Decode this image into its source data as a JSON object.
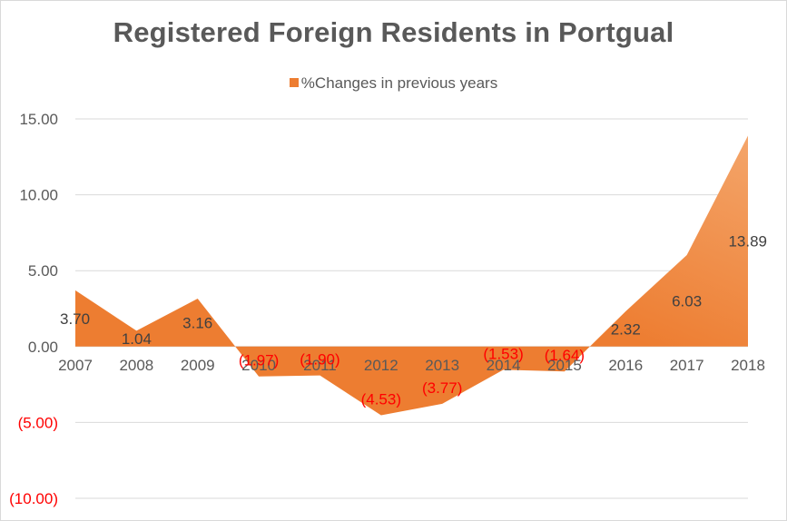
{
  "chart_data": {
    "type": "area",
    "title": "Registered Foreign Residents in Portgual",
    "categories": [
      "2007",
      "2008",
      "2009",
      "2010",
      "2011",
      "2012",
      "2013",
      "2014",
      "2015",
      "2016",
      "2017",
      "2018"
    ],
    "series": [
      {
        "name": "%Changes in previous years",
        "values": [
          3.7,
          1.04,
          3.16,
          -1.97,
          -1.9,
          -4.53,
          -3.77,
          -1.53,
          -1.64,
          2.32,
          6.03,
          13.89
        ],
        "labels": [
          "3.70",
          "1.04",
          "3.16",
          "(1.97)",
          "(1.90)",
          "(4.53)",
          "(3.77)",
          "(1.53)",
          "(1.64)",
          "2.32",
          "6.03",
          "13.89"
        ]
      }
    ],
    "ylim": [
      -10,
      15
    ],
    "yticks": [
      15,
      10,
      5,
      0,
      -5,
      -10
    ],
    "ytick_labels": [
      "15.00",
      "10.00",
      "5.00",
      "0.00",
      "(5.00)",
      "(10.00)"
    ],
    "xlabel": "",
    "ylabel": "",
    "grid": true,
    "legend_position": "top",
    "colors": {
      "area": "#ed7d31",
      "area_light": "#f4a56a",
      "negative_text": "#ff0000",
      "text": "#595959",
      "grid": "#d9d9d9"
    }
  }
}
